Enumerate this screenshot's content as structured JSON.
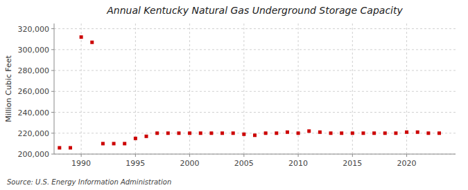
{
  "chart_data": {
    "type": "scatter",
    "title": "Annual Kentucky Natural Gas Underground Storage Capacity",
    "y_label": "Million Cubic Feet",
    "source": "Source: U.S. Energy Information Administration",
    "x": [
      1988,
      1989,
      1990,
      1991,
      1992,
      1993,
      1994,
      1995,
      1996,
      1997,
      1998,
      1999,
      2000,
      2001,
      2002,
      2003,
      2004,
      2005,
      2006,
      2007,
      2008,
      2009,
      2010,
      2011,
      2012,
      2013,
      2014,
      2015,
      2016,
      2017,
      2018,
      2019,
      2020,
      2021,
      2022,
      2023
    ],
    "values": [
      206000,
      206000,
      312000,
      307000,
      210000,
      210000,
      210000,
      215000,
      217000,
      220000,
      220000,
      220000,
      220000,
      220000,
      220000,
      220000,
      220000,
      219000,
      218000,
      220000,
      220000,
      221000,
      220000,
      222000,
      221000,
      220000,
      220000,
      220000,
      220000,
      220000,
      220000,
      220000,
      221000,
      221000,
      220000,
      220000
    ],
    "color": "#cc0000",
    "marker": "square",
    "xlim": [
      1987.5,
      2024.5
    ],
    "xticks": [
      1990,
      1995,
      2000,
      2005,
      2010,
      2015,
      2020
    ],
    "ylim": [
      200000,
      325000
    ],
    "yticks": [
      {
        "value": 200000,
        "label": "200,000"
      },
      {
        "value": 220000,
        "label": "220,000"
      },
      {
        "value": 240000,
        "label": "240,000"
      },
      {
        "value": 260000,
        "label": "260,000"
      },
      {
        "value": 280000,
        "label": "280,000"
      },
      {
        "value": 300000,
        "label": "300,000"
      },
      {
        "value": 320000,
        "label": "320,000"
      }
    ],
    "grid": true
  }
}
